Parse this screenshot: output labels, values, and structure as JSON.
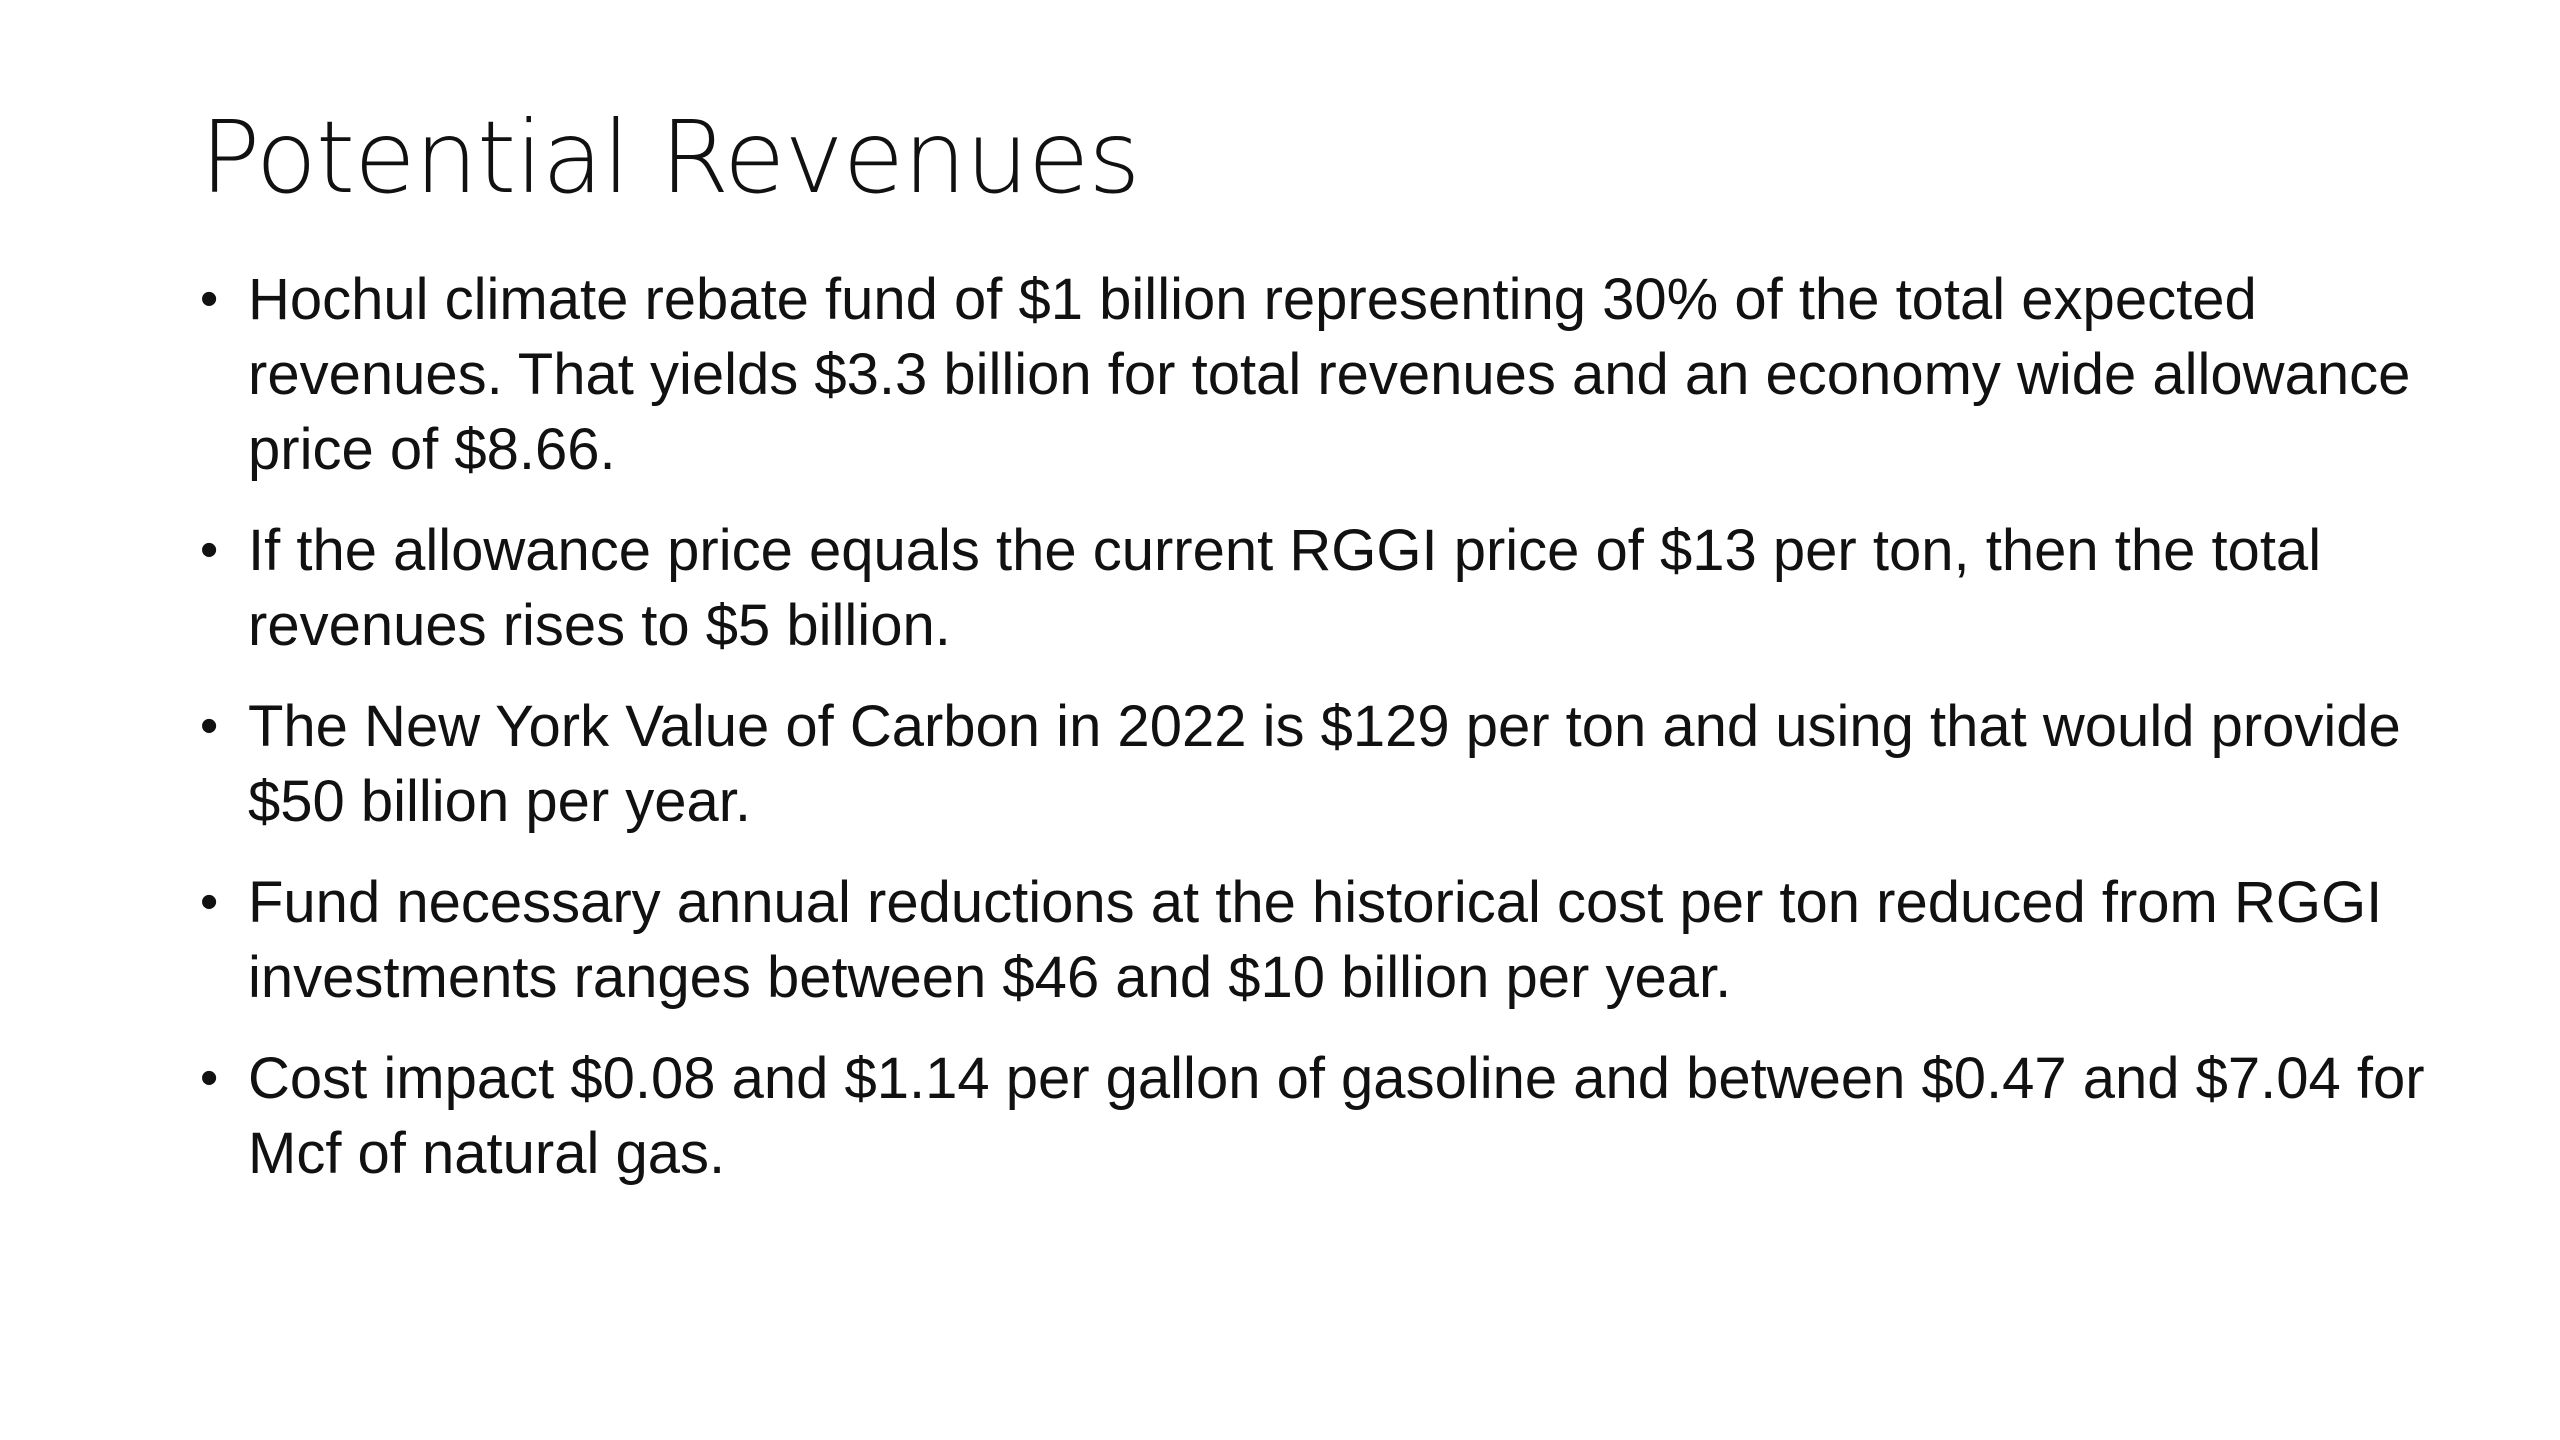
{
  "slide": {
    "title": "Potential Revenues",
    "bullet_symbol": "•",
    "bullets": [
      "Hochul climate rebate fund of $1 billion representing 30% of the total expected revenues.  That yields $3.3 billion for total revenues and an economy wide allowance price of $8.66.",
      "If the allowance price equals the current RGGI price of $13 per ton, then the total revenues rises to $5 billion.",
      "The New York Value of Carbon in 2022 is $129 per ton and using that would provide $50 billion per year.",
      "Fund necessary annual reductions at the historical cost per ton reduced from RGGI investments ranges between $46 and $10 billion per year.",
      "Cost impact $0.08 and $1.14 per gallon of gasoline and between $0.47 and $7.04 for Mcf of natural gas."
    ]
  }
}
